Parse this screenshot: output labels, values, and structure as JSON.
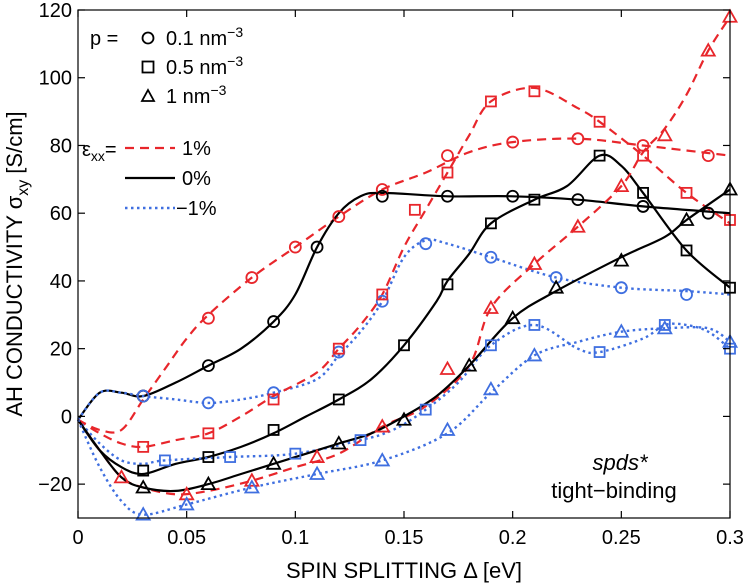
{
  "chart_data": {
    "type": "line",
    "xlabel": "SPIN SPLITTING Δ [eV]",
    "ylabel": "AH CONDUCTIVITY σxy [S/cm]",
    "ylabel_main": "AH CONDUCTIVITY σ",
    "ylabel_sub": "xy",
    "ylabel_unit": "[S/cm]",
    "xlim": [
      0,
      0.3
    ],
    "ylim": [
      -30,
      120
    ],
    "xticks": [
      0,
      0.05,
      0.1,
      0.15,
      0.2,
      0.25,
      0.3
    ],
    "xtick_labels": [
      "0",
      "0.05",
      "0.1",
      "0.15",
      "0.2",
      "0.25",
      "0.3"
    ],
    "yticks": [
      -20,
      0,
      20,
      40,
      60,
      80,
      100,
      120
    ],
    "ytick_labels": [
      "−20",
      "0",
      "20",
      "40",
      "60",
      "80",
      "100",
      "120"
    ],
    "grid": false,
    "legend": {
      "p_label": "p =",
      "p_entries": [
        {
          "marker": "circle",
          "text": "0.1 nm",
          "sup": "−3"
        },
        {
          "marker": "square",
          "text": "0.5 nm",
          "sup": "−3"
        },
        {
          "marker": "triangle",
          "text": "1 nm",
          "sup": "−3"
        }
      ],
      "eps_label": "ε",
      "eps_sub": "xx",
      "eps_eq": "=",
      "strain_entries": [
        {
          "label": "1%",
          "color": "#e8262b",
          "style": "dashed"
        },
        {
          "label": "0%",
          "color": "#000000",
          "style": "solid"
        },
        {
          "label": "−1%",
          "color": "#3f6fe0",
          "style": "dotted"
        }
      ]
    },
    "annotation": {
      "line1": "spds*",
      "line2": "tight−binding"
    },
    "series": [
      {
        "name": "0.1 nm-3, 1%",
        "marker": "circle",
        "color": "#e8262b",
        "style": "dashed",
        "curve": [
          [
            0,
            -1
          ],
          [
            0.01,
            -4
          ],
          [
            0.02,
            -4
          ],
          [
            0.03,
            5
          ],
          [
            0.04,
            14
          ],
          [
            0.05,
            23
          ],
          [
            0.06,
            30
          ],
          [
            0.08,
            41
          ],
          [
            0.1,
            50
          ],
          [
            0.12,
            59
          ],
          [
            0.14,
            67
          ],
          [
            0.16,
            72
          ],
          [
            0.18,
            78
          ],
          [
            0.2,
            81
          ],
          [
            0.23,
            82
          ],
          [
            0.26,
            80
          ],
          [
            0.3,
            77
          ]
        ],
        "markers": [
          [
            0.03,
            6
          ],
          [
            0.06,
            29
          ],
          [
            0.08,
            41
          ],
          [
            0.1,
            50
          ],
          [
            0.12,
            59
          ],
          [
            0.14,
            67
          ],
          [
            0.17,
            77
          ],
          [
            0.2,
            81
          ],
          [
            0.23,
            82
          ],
          [
            0.26,
            80
          ],
          [
            0.29,
            77
          ]
        ]
      },
      {
        "name": "0.1 nm-3, 0%",
        "marker": "circle",
        "color": "#000000",
        "style": "solid",
        "curve": [
          [
            0,
            -1
          ],
          [
            0.01,
            7
          ],
          [
            0.02,
            7
          ],
          [
            0.03,
            6
          ],
          [
            0.045,
            10
          ],
          [
            0.06,
            15
          ],
          [
            0.075,
            20
          ],
          [
            0.09,
            28
          ],
          [
            0.1,
            36
          ],
          [
            0.11,
            50
          ],
          [
            0.12,
            60
          ],
          [
            0.13,
            65
          ],
          [
            0.14,
            66
          ],
          [
            0.17,
            65
          ],
          [
            0.2,
            65
          ],
          [
            0.23,
            64
          ],
          [
            0.26,
            62
          ],
          [
            0.3,
            60
          ]
        ],
        "markers": [
          [
            0.03,
            6
          ],
          [
            0.06,
            15
          ],
          [
            0.09,
            28
          ],
          [
            0.11,
            50
          ],
          [
            0.14,
            65
          ],
          [
            0.17,
            65
          ],
          [
            0.2,
            65
          ],
          [
            0.23,
            64
          ],
          [
            0.26,
            62
          ],
          [
            0.29,
            60
          ]
        ]
      },
      {
        "name": "0.1 nm-3, -1%",
        "marker": "circle",
        "color": "#3f6fe0",
        "style": "dotted",
        "curve": [
          [
            0,
            -1
          ],
          [
            0.01,
            7
          ],
          [
            0.02,
            7
          ],
          [
            0.03,
            6
          ],
          [
            0.045,
            5
          ],
          [
            0.06,
            4
          ],
          [
            0.075,
            5
          ],
          [
            0.09,
            7
          ],
          [
            0.11,
            11
          ],
          [
            0.12,
            18
          ],
          [
            0.13,
            25
          ],
          [
            0.14,
            34
          ],
          [
            0.15,
            47
          ],
          [
            0.16,
            52
          ],
          [
            0.17,
            51
          ],
          [
            0.19,
            47
          ],
          [
            0.22,
            41
          ],
          [
            0.25,
            38
          ],
          [
            0.28,
            37
          ],
          [
            0.3,
            36
          ]
        ],
        "markers": [
          [
            0.03,
            6
          ],
          [
            0.06,
            4
          ],
          [
            0.09,
            7
          ],
          [
            0.12,
            19
          ],
          [
            0.14,
            34
          ],
          [
            0.16,
            51
          ],
          [
            0.19,
            47
          ],
          [
            0.22,
            41
          ],
          [
            0.25,
            38
          ],
          [
            0.28,
            36
          ]
        ]
      },
      {
        "name": "0.5 nm-3, 1%",
        "marker": "square",
        "color": "#e8262b",
        "style": "dashed",
        "curve": [
          [
            0,
            -1
          ],
          [
            0.01,
            -5
          ],
          [
            0.02,
            -8
          ],
          [
            0.03,
            -9
          ],
          [
            0.045,
            -7
          ],
          [
            0.06,
            -5
          ],
          [
            0.075,
            0
          ],
          [
            0.09,
            6
          ],
          [
            0.11,
            13
          ],
          [
            0.12,
            20
          ],
          [
            0.13,
            27
          ],
          [
            0.14,
            36
          ],
          [
            0.15,
            50
          ],
          [
            0.16,
            61
          ],
          [
            0.17,
            72
          ],
          [
            0.18,
            83
          ],
          [
            0.19,
            93
          ],
          [
            0.21,
            97
          ],
          [
            0.23,
            91
          ],
          [
            0.24,
            87
          ],
          [
            0.26,
            77
          ],
          [
            0.28,
            66
          ],
          [
            0.3,
            57
          ]
        ],
        "markers": [
          [
            0.03,
            -9
          ],
          [
            0.06,
            -5
          ],
          [
            0.09,
            5
          ],
          [
            0.12,
            20
          ],
          [
            0.14,
            36
          ],
          [
            0.155,
            61
          ],
          [
            0.17,
            72
          ],
          [
            0.19,
            93
          ],
          [
            0.21,
            96
          ],
          [
            0.24,
            87
          ],
          [
            0.26,
            77
          ],
          [
            0.28,
            66
          ],
          [
            0.3,
            58
          ]
        ]
      },
      {
        "name": "0.5 nm-3, 0%",
        "marker": "square",
        "color": "#000000",
        "style": "solid",
        "curve": [
          [
            0,
            -1
          ],
          [
            0.01,
            -10
          ],
          [
            0.02,
            -15
          ],
          [
            0.03,
            -17
          ],
          [
            0.045,
            -14
          ],
          [
            0.06,
            -12
          ],
          [
            0.075,
            -9
          ],
          [
            0.09,
            -5
          ],
          [
            0.105,
            0
          ],
          [
            0.12,
            5
          ],
          [
            0.135,
            11
          ],
          [
            0.15,
            21
          ],
          [
            0.165,
            34
          ],
          [
            0.17,
            40
          ],
          [
            0.18,
            48
          ],
          [
            0.19,
            57
          ],
          [
            0.21,
            64
          ],
          [
            0.225,
            68
          ],
          [
            0.24,
            77
          ],
          [
            0.25,
            74
          ],
          [
            0.26,
            66
          ],
          [
            0.28,
            49
          ],
          [
            0.3,
            38
          ]
        ],
        "markers": [
          [
            0.03,
            -16
          ],
          [
            0.06,
            -12
          ],
          [
            0.09,
            -4
          ],
          [
            0.12,
            5
          ],
          [
            0.15,
            21
          ],
          [
            0.17,
            39
          ],
          [
            0.19,
            57
          ],
          [
            0.21,
            64
          ],
          [
            0.24,
            77
          ],
          [
            0.26,
            66
          ],
          [
            0.28,
            49
          ],
          [
            0.3,
            38
          ]
        ]
      },
      {
        "name": "0.5 nm-3, -1%",
        "marker": "square",
        "color": "#3f6fe0",
        "style": "dotted",
        "curve": [
          [
            0,
            -1
          ],
          [
            0.01,
            -8
          ],
          [
            0.02,
            -13
          ],
          [
            0.03,
            -14
          ],
          [
            0.04,
            -13
          ],
          [
            0.07,
            -12
          ],
          [
            0.1,
            -11
          ],
          [
            0.13,
            -7
          ],
          [
            0.145,
            -4
          ],
          [
            0.16,
            2
          ],
          [
            0.175,
            10
          ],
          [
            0.19,
            21
          ],
          [
            0.21,
            27
          ],
          [
            0.23,
            20
          ],
          [
            0.24,
            19
          ],
          [
            0.26,
            23
          ],
          [
            0.27,
            27
          ],
          [
            0.28,
            27
          ],
          [
            0.29,
            25
          ],
          [
            0.3,
            20
          ]
        ],
        "markers": [
          [
            0.04,
            -13
          ],
          [
            0.07,
            -12
          ],
          [
            0.1,
            -11
          ],
          [
            0.13,
            -7
          ],
          [
            0.16,
            2
          ],
          [
            0.19,
            21
          ],
          [
            0.21,
            27
          ],
          [
            0.24,
            19
          ],
          [
            0.27,
            27
          ],
          [
            0.3,
            20
          ]
        ]
      },
      {
        "name": "1 nm-3, 1%",
        "marker": "triangle",
        "color": "#e8262b",
        "style": "dashed",
        "curve": [
          [
            0,
            -1
          ],
          [
            0.01,
            -10
          ],
          [
            0.02,
            -18
          ],
          [
            0.03,
            -21
          ],
          [
            0.045,
            -23
          ],
          [
            0.06,
            -22
          ],
          [
            0.08,
            -19
          ],
          [
            0.1,
            -15
          ],
          [
            0.12,
            -11
          ],
          [
            0.14,
            -3
          ],
          [
            0.16,
            3
          ],
          [
            0.18,
            15
          ],
          [
            0.19,
            32
          ],
          [
            0.21,
            45
          ],
          [
            0.23,
            56
          ],
          [
            0.25,
            68
          ],
          [
            0.26,
            78
          ],
          [
            0.27,
            85
          ],
          [
            0.28,
            95
          ],
          [
            0.29,
            108
          ],
          [
            0.3,
            118
          ]
        ],
        "markers": [
          [
            0.02,
            -18
          ],
          [
            0.05,
            -23
          ],
          [
            0.08,
            -19
          ],
          [
            0.11,
            -12
          ],
          [
            0.14,
            -3
          ],
          [
            0.17,
            14
          ],
          [
            0.19,
            32
          ],
          [
            0.21,
            45
          ],
          [
            0.23,
            56
          ],
          [
            0.25,
            68
          ],
          [
            0.27,
            83
          ],
          [
            0.29,
            108
          ],
          [
            0.3,
            118
          ]
        ]
      },
      {
        "name": "1 nm-3, 0%",
        "marker": "triangle",
        "color": "#000000",
        "style": "solid",
        "curve": [
          [
            0,
            -1
          ],
          [
            0.01,
            -10
          ],
          [
            0.02,
            -18
          ],
          [
            0.03,
            -21
          ],
          [
            0.045,
            -22
          ],
          [
            0.06,
            -20
          ],
          [
            0.075,
            -17
          ],
          [
            0.09,
            -14
          ],
          [
            0.105,
            -11
          ],
          [
            0.12,
            -8
          ],
          [
            0.135,
            -5
          ],
          [
            0.15,
            0
          ],
          [
            0.165,
            6
          ],
          [
            0.18,
            15
          ],
          [
            0.2,
            29
          ],
          [
            0.22,
            37
          ],
          [
            0.25,
            47
          ],
          [
            0.27,
            53
          ],
          [
            0.28,
            58
          ],
          [
            0.3,
            67
          ]
        ],
        "markers": [
          [
            0.03,
            -21
          ],
          [
            0.06,
            -20
          ],
          [
            0.09,
            -14
          ],
          [
            0.12,
            -8
          ],
          [
            0.15,
            -1
          ],
          [
            0.18,
            15
          ],
          [
            0.2,
            29
          ],
          [
            0.22,
            38
          ],
          [
            0.25,
            46
          ],
          [
            0.28,
            58
          ],
          [
            0.3,
            67
          ]
        ]
      },
      {
        "name": "1 nm-3, -1%",
        "marker": "triangle",
        "color": "#3f6fe0",
        "style": "dotted",
        "curve": [
          [
            0,
            -1
          ],
          [
            0.01,
            -15
          ],
          [
            0.02,
            -25
          ],
          [
            0.03,
            -29
          ],
          [
            0.05,
            -26
          ],
          [
            0.08,
            -21
          ],
          [
            0.11,
            -17
          ],
          [
            0.14,
            -13
          ],
          [
            0.17,
            -5
          ],
          [
            0.19,
            7
          ],
          [
            0.21,
            18
          ],
          [
            0.23,
            22
          ],
          [
            0.25,
            25
          ],
          [
            0.27,
            26
          ],
          [
            0.29,
            26
          ],
          [
            0.3,
            22
          ]
        ],
        "markers": [
          [
            0.03,
            -29
          ],
          [
            0.05,
            -26
          ],
          [
            0.08,
            -21
          ],
          [
            0.11,
            -17
          ],
          [
            0.14,
            -13
          ],
          [
            0.17,
            -4
          ],
          [
            0.19,
            8
          ],
          [
            0.21,
            18
          ],
          [
            0.25,
            25
          ],
          [
            0.27,
            26
          ],
          [
            0.3,
            22
          ]
        ]
      }
    ]
  }
}
